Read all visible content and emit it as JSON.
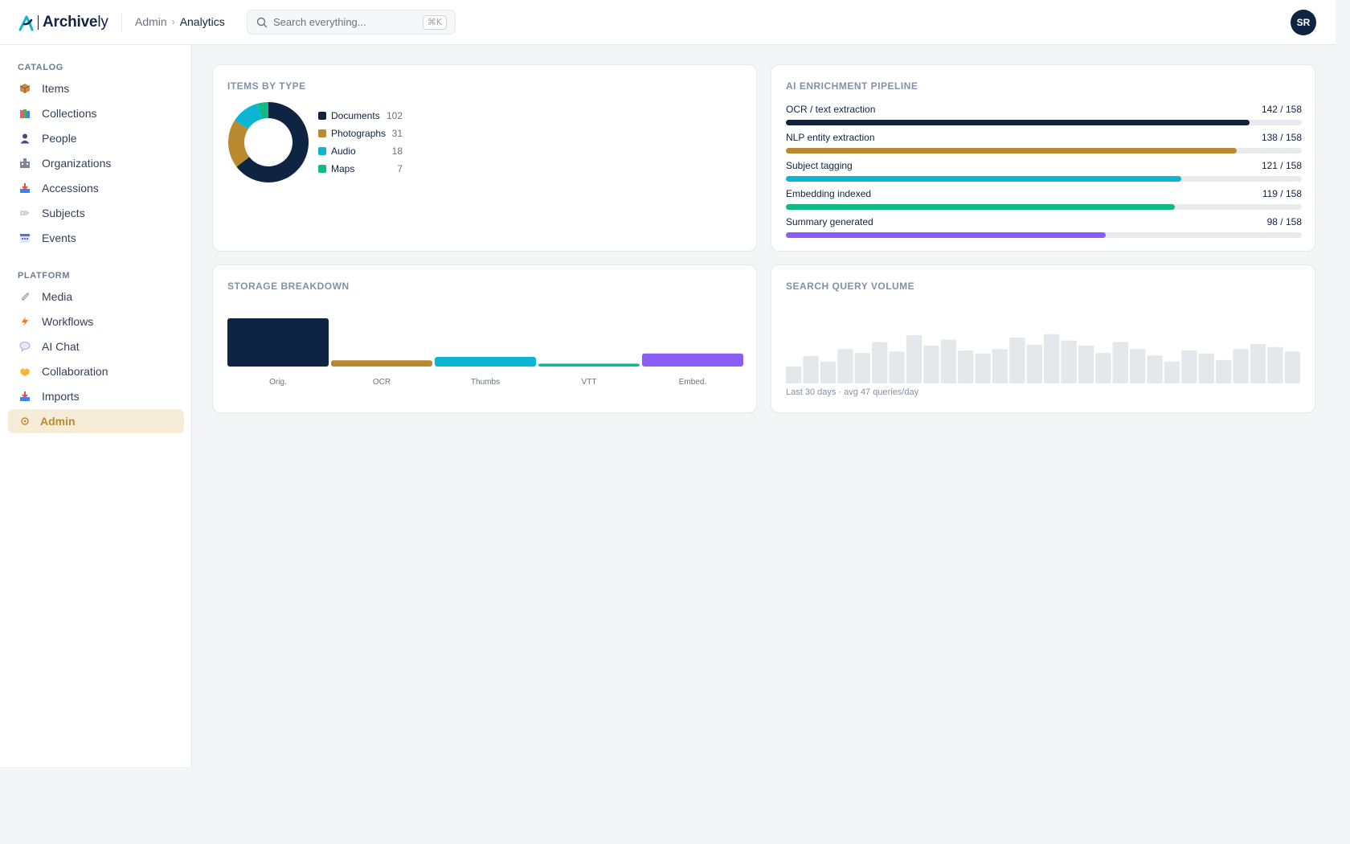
{
  "app": {
    "logo_bold": "Archive",
    "logo_light": "ly",
    "breadcrumb": [
      "Admin",
      "Analytics"
    ],
    "search_placeholder": "Search everything...",
    "search_shortcut": "⌘K",
    "user_initials": "SR"
  },
  "sidebar": {
    "sections": [
      {
        "label": "CATALOG",
        "items": [
          {
            "label": "Items",
            "icon": "package-icon"
          },
          {
            "label": "Collections",
            "icon": "books-icon"
          },
          {
            "label": "People",
            "icon": "person-icon"
          },
          {
            "label": "Organizations",
            "icon": "building-icon"
          },
          {
            "label": "Accessions",
            "icon": "inbox-tray-icon"
          },
          {
            "label": "Subjects",
            "icon": "tag-icon"
          },
          {
            "label": "Events",
            "icon": "calendar-icon"
          }
        ]
      },
      {
        "label": "PLATFORM",
        "items": [
          {
            "label": "Media",
            "icon": "paperclip-icon"
          },
          {
            "label": "Workflows",
            "icon": "lightning-icon"
          },
          {
            "label": "AI Chat",
            "icon": "speech-bubble-icon"
          },
          {
            "label": "Collaboration",
            "icon": "handshake-icon"
          },
          {
            "label": "Imports",
            "icon": "import-tray-icon"
          },
          {
            "label": "Admin",
            "icon": "gear-icon",
            "active": true
          }
        ]
      }
    ]
  },
  "cards": {
    "items_by_type": {
      "title": "ITEMS BY TYPE",
      "legend": [
        {
          "label": "Documents",
          "value": "102"
        },
        {
          "label": "Photographs",
          "value": "31"
        },
        {
          "label": "Audio",
          "value": "18"
        },
        {
          "label": "Maps",
          "value": "7"
        }
      ]
    },
    "pipeline": {
      "title": "AI ENRICHMENT PIPELINE",
      "rows": [
        {
          "label": "OCR / text extraction",
          "count": "142 / 158"
        },
        {
          "label": "NLP entity extraction",
          "count": "138 / 158"
        },
        {
          "label": "Subject tagging",
          "count": "121 / 158"
        },
        {
          "label": "Embedding indexed",
          "count": "119 / 158"
        },
        {
          "label": "Summary generated",
          "count": "98 / 158"
        }
      ]
    },
    "storage": {
      "title": "STORAGE BREAKDOWN"
    },
    "search_volume": {
      "title": "SEARCH QUERY VOLUME",
      "caption": "Last 30 days · avg 47 queries/day"
    }
  },
  "chart_data": [
    {
      "type": "pie",
      "title": "ITEMS BY TYPE",
      "categories": [
        "Documents",
        "Photographs",
        "Audio",
        "Maps"
      ],
      "values": [
        102,
        31,
        18,
        7
      ],
      "colors": [
        "#0f2342",
        "#b98a2f",
        "#0db5d4",
        "#12b886"
      ],
      "donut": true,
      "legend": "right"
    },
    {
      "type": "bar",
      "orientation": "horizontal",
      "title": "AI ENRICHMENT PIPELINE",
      "categories": [
        "OCR / text extraction",
        "NLP entity extraction",
        "Subject tagging",
        "Embedding indexed",
        "Summary generated"
      ],
      "values": [
        142,
        138,
        121,
        119,
        98
      ],
      "max": 158,
      "colors": [
        "#0f2342",
        "#b98a2f",
        "#0db5d4",
        "#12b886",
        "#8b5cf6"
      ]
    },
    {
      "type": "bar",
      "title": "STORAGE BREAKDOWN",
      "categories": [
        "Orig.",
        "OCR",
        "Thumbs",
        "VTT",
        "Embed."
      ],
      "values": [
        100,
        13,
        20,
        6,
        27
      ],
      "ylim": [
        0,
        100
      ],
      "colors": [
        "#0f2342",
        "#b98a2f",
        "#0db5d4",
        "#12b886",
        "#8b5cf6"
      ]
    },
    {
      "type": "bar",
      "title": "SEARCH QUERY VOLUME",
      "x": [
        1,
        2,
        3,
        4,
        5,
        6,
        7,
        8,
        9,
        10,
        11,
        12,
        13,
        14,
        15,
        16,
        17,
        18,
        19,
        20,
        21,
        22,
        23,
        24,
        25,
        26,
        27,
        28,
        29,
        30
      ],
      "values": [
        34,
        55,
        44,
        69,
        61,
        83,
        64,
        97,
        76,
        88,
        66,
        60,
        69,
        92,
        78,
        99,
        86,
        76,
        61,
        83,
        69,
        56,
        44,
        66,
        60,
        47,
        69,
        79,
        73,
        64
      ],
      "ylim": [
        0,
        100
      ],
      "color": "#e5e7eb"
    }
  ]
}
